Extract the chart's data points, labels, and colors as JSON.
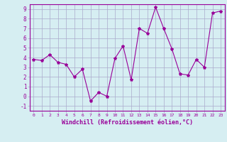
{
  "x": [
    0,
    1,
    2,
    3,
    4,
    5,
    6,
    7,
    8,
    9,
    10,
    11,
    12,
    13,
    14,
    15,
    16,
    17,
    18,
    19,
    20,
    21,
    22,
    23
  ],
  "y": [
    3.8,
    3.7,
    4.3,
    3.5,
    3.3,
    2.0,
    2.8,
    -0.5,
    0.4,
    0.0,
    3.9,
    5.2,
    1.7,
    7.0,
    6.5,
    9.2,
    7.0,
    4.9,
    2.3,
    2.2,
    3.8,
    3.0,
    8.6,
    8.8
  ],
  "xlabel": "Windchill (Refroidissement éolien,°C)",
  "ylim": [
    -1.5,
    9.5
  ],
  "xlim": [
    -0.5,
    23.5
  ],
  "yticks": [
    -1,
    0,
    1,
    2,
    3,
    4,
    5,
    6,
    7,
    8,
    9
  ],
  "xticks": [
    0,
    1,
    2,
    3,
    4,
    5,
    6,
    7,
    8,
    9,
    10,
    11,
    12,
    13,
    14,
    15,
    16,
    17,
    18,
    19,
    20,
    21,
    22,
    23
  ],
  "line_color": "#990099",
  "marker": "*",
  "bg_color": "#d6eef2",
  "grid_color": "#aaaacc"
}
